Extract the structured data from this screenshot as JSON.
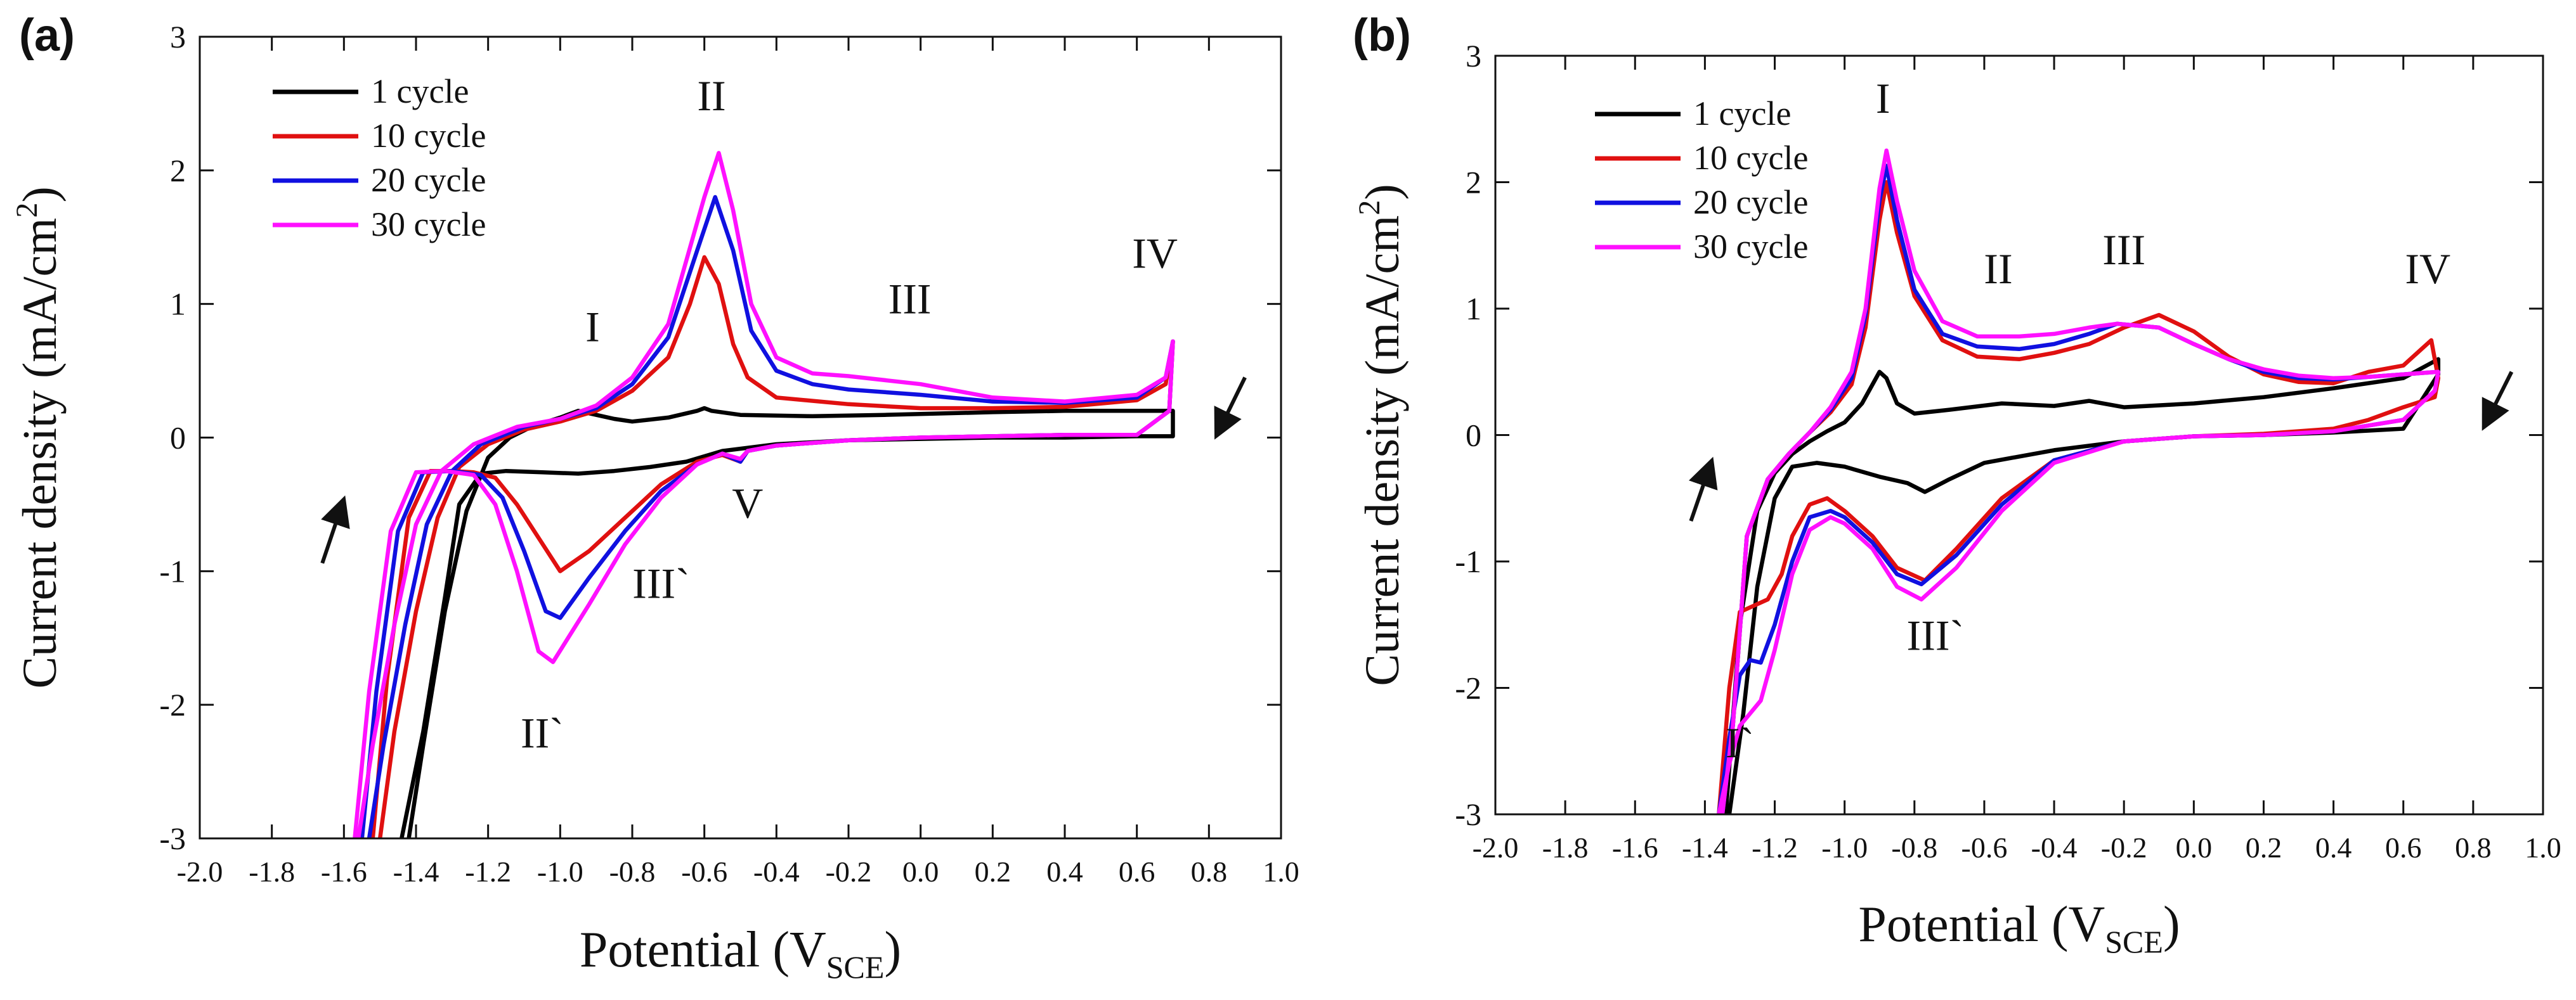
{
  "chart_data": [
    {
      "type": "line",
      "panel_label": "(a)",
      "xlabel": "Potential (V",
      "xlabel_sub": "SCE",
      "xlabel_close": ")",
      "ylabel": "Current density (mA/cm",
      "ylabel_sup": "2",
      "ylabel_close": ")",
      "xlim": [
        -2.0,
        1.0
      ],
      "ylim": [
        -3,
        3
      ],
      "xticks": [
        -2.0,
        -1.8,
        -1.6,
        -1.4,
        -1.2,
        -1.0,
        -0.8,
        -0.6,
        -0.4,
        -0.2,
        0.0,
        0.2,
        0.4,
        0.6,
        0.8,
        1.0
      ],
      "xtick_labels": [
        "-2.0",
        "-1.8",
        "-1.6",
        "-1.4",
        "-1.2",
        "-1.0",
        "-0.8",
        "-0.6",
        "-0.4",
        "-0.2",
        "0.0",
        "0.2",
        "0.4",
        "0.6",
        "0.8",
        "1.0"
      ],
      "yticks": [
        -3,
        -2,
        -1,
        0,
        1,
        2,
        3
      ],
      "ytick_labels": [
        "-3",
        "-2",
        "-1",
        "0",
        "1",
        "2",
        "3"
      ],
      "legend_position": "top-left",
      "series": [
        {
          "name": "1 cycle",
          "color": "#000000",
          "x": [
            -1.42,
            -1.38,
            -1.32,
            -1.26,
            -1.2,
            -1.14,
            -1.08,
            -1.0,
            -0.95,
            -0.9,
            -0.85,
            -0.8,
            -0.7,
            -0.62,
            -0.6,
            -0.58,
            -0.5,
            -0.3,
            -0.1,
            0.2,
            0.4,
            0.6,
            0.7,
            0.7,
            0.6,
            0.4,
            0.2,
            0.0,
            -0.2,
            -0.4,
            -0.55,
            -0.65,
            -0.75,
            -0.85,
            -0.95,
            -1.05,
            -1.15,
            -1.22,
            -1.28,
            -1.32,
            -1.38,
            -1.44
          ],
          "y": [
            -3.0,
            -2.3,
            -1.3,
            -0.55,
            -0.15,
            0.0,
            0.08,
            0.15,
            0.2,
            0.17,
            0.14,
            0.12,
            0.15,
            0.2,
            0.22,
            0.2,
            0.17,
            0.16,
            0.17,
            0.19,
            0.2,
            0.2,
            0.2,
            0.01,
            0.01,
            0.0,
            0.0,
            -0.01,
            -0.02,
            -0.05,
            -0.1,
            -0.18,
            -0.22,
            -0.25,
            -0.27,
            -0.26,
            -0.25,
            -0.27,
            -0.5,
            -1.2,
            -2.2,
            -3.0
          ]
        },
        {
          "name": "10 cycle",
          "color": "#e01010",
          "x": [
            -1.5,
            -1.46,
            -1.4,
            -1.34,
            -1.28,
            -1.2,
            -1.1,
            -1.0,
            -0.9,
            -0.8,
            -0.7,
            -0.64,
            -0.6,
            -0.56,
            -0.52,
            -0.48,
            -0.4,
            -0.2,
            0.0,
            0.2,
            0.4,
            0.6,
            0.68,
            0.7,
            0.69,
            0.6,
            0.4,
            0.2,
            0.0,
            -0.2,
            -0.4,
            -0.48,
            -0.5,
            -0.55,
            -0.62,
            -0.72,
            -0.82,
            -0.92,
            -1.0,
            -1.06,
            -1.12,
            -1.18,
            -1.24,
            -1.3,
            -1.36,
            -1.42,
            -1.48,
            -1.52
          ],
          "y": [
            -3.0,
            -2.2,
            -1.3,
            -0.6,
            -0.22,
            -0.05,
            0.06,
            0.12,
            0.2,
            0.35,
            0.6,
            1.0,
            1.35,
            1.15,
            0.7,
            0.45,
            0.3,
            0.25,
            0.22,
            0.22,
            0.23,
            0.28,
            0.4,
            0.72,
            0.2,
            0.02,
            0.02,
            0.01,
            0.0,
            -0.02,
            -0.06,
            -0.1,
            -0.18,
            -0.13,
            -0.18,
            -0.35,
            -0.6,
            -0.85,
            -1.0,
            -0.75,
            -0.5,
            -0.3,
            -0.26,
            -0.25,
            -0.25,
            -0.6,
            -1.8,
            -3.0
          ]
        },
        {
          "name": "20 cycle",
          "color": "#1010e0",
          "x": [
            -1.53,
            -1.49,
            -1.43,
            -1.37,
            -1.3,
            -1.22,
            -1.1,
            -1.0,
            -0.9,
            -0.8,
            -0.7,
            -0.62,
            -0.57,
            -0.52,
            -0.47,
            -0.4,
            -0.3,
            -0.2,
            0.0,
            0.2,
            0.4,
            0.6,
            0.68,
            0.7,
            0.69,
            0.6,
            0.4,
            0.2,
            0.0,
            -0.2,
            -0.4,
            -0.48,
            -0.5,
            -0.55,
            -0.62,
            -0.72,
            -0.82,
            -0.92,
            -1.0,
            -1.04,
            -1.1,
            -1.16,
            -1.22,
            -1.3,
            -1.38,
            -1.45,
            -1.51,
            -1.55
          ],
          "y": [
            -3.0,
            -2.3,
            -1.4,
            -0.65,
            -0.25,
            -0.05,
            0.08,
            0.14,
            0.22,
            0.4,
            0.75,
            1.4,
            1.8,
            1.4,
            0.8,
            0.5,
            0.4,
            0.36,
            0.32,
            0.27,
            0.26,
            0.3,
            0.45,
            0.72,
            0.2,
            0.02,
            0.02,
            0.01,
            0.0,
            -0.02,
            -0.06,
            -0.1,
            -0.18,
            -0.12,
            -0.2,
            -0.4,
            -0.7,
            -1.05,
            -1.35,
            -1.3,
            -0.85,
            -0.45,
            -0.28,
            -0.25,
            -0.26,
            -0.7,
            -1.9,
            -3.0
          ]
        },
        {
          "name": "30 cycle",
          "color": "#ff10ff",
          "x": [
            -1.56,
            -1.52,
            -1.46,
            -1.4,
            -1.33,
            -1.24,
            -1.12,
            -1.0,
            -0.9,
            -0.8,
            -0.7,
            -0.6,
            -0.56,
            -0.52,
            -0.47,
            -0.4,
            -0.3,
            -0.2,
            0.0,
            0.2,
            0.4,
            0.6,
            0.68,
            0.7,
            0.69,
            0.6,
            0.4,
            0.2,
            0.0,
            -0.2,
            -0.4,
            -0.48,
            -0.5,
            -0.55,
            -0.62,
            -0.72,
            -0.82,
            -0.92,
            -1.02,
            -1.06,
            -1.12,
            -1.18,
            -1.24,
            -1.32,
            -1.4,
            -1.47,
            -1.53,
            -1.57
          ],
          "y": [
            -3.0,
            -2.3,
            -1.4,
            -0.65,
            -0.25,
            -0.05,
            0.08,
            0.14,
            0.24,
            0.45,
            0.85,
            1.8,
            2.13,
            1.7,
            1.0,
            0.6,
            0.48,
            0.46,
            0.4,
            0.3,
            0.27,
            0.32,
            0.45,
            0.72,
            0.2,
            0.02,
            0.02,
            0.01,
            0.0,
            -0.02,
            -0.06,
            -0.1,
            -0.16,
            -0.12,
            -0.2,
            -0.45,
            -0.8,
            -1.25,
            -1.68,
            -1.6,
            -1.0,
            -0.5,
            -0.28,
            -0.25,
            -0.26,
            -0.7,
            -1.9,
            -3.0
          ]
        }
      ],
      "annotations": [
        {
          "text": "I",
          "x": -0.91,
          "y": 0.72
        },
        {
          "text": "II",
          "x": -0.58,
          "y": 2.45
        },
        {
          "text": "III",
          "x": -0.03,
          "y": 0.93
        },
        {
          "text": "IV",
          "x": 0.65,
          "y": 1.27
        },
        {
          "text": "V",
          "x": -0.48,
          "y": -0.6
        },
        {
          "text": "III`",
          "x": -0.72,
          "y": -1.2
        },
        {
          "text": "II`",
          "x": -1.05,
          "y": -2.32
        }
      ],
      "arrows": [
        {
          "x": -1.66,
          "y": -0.94,
          "dx": 0.06,
          "dy": 0.48
        },
        {
          "x": 0.9,
          "y": 0.45,
          "dx": -0.08,
          "dy": -0.44
        }
      ]
    },
    {
      "type": "line",
      "panel_label": "(b)",
      "xlabel": "Potential (V",
      "xlabel_sub": "SCE",
      "xlabel_close": ")",
      "ylabel": "Current density (mA/cm",
      "ylabel_sup": "2",
      "ylabel_close": ")",
      "xlim": [
        -2.0,
        1.0
      ],
      "ylim": [
        -3,
        3
      ],
      "xticks": [
        -2.0,
        -1.8,
        -1.6,
        -1.4,
        -1.2,
        -1.0,
        -0.8,
        -0.6,
        -0.4,
        -0.2,
        0.0,
        0.2,
        0.4,
        0.6,
        0.8,
        1.0
      ],
      "xtick_labels": [
        "-2.0",
        "-1.8",
        "-1.6",
        "-1.4",
        "-1.2",
        "-1.0",
        "-0.8",
        "-0.6",
        "-0.4",
        "-0.2",
        "0.0",
        "0.2",
        "0.4",
        "0.6",
        "0.8",
        "1.0"
      ],
      "yticks": [
        -3,
        -2,
        -1,
        0,
        1,
        2,
        3
      ],
      "ytick_labels": [
        "-3",
        "-2",
        "-1",
        "0",
        "1",
        "2",
        "3"
      ],
      "legend_position": "top-left",
      "series": [
        {
          "name": "1 cycle",
          "color": "#000000",
          "x": [
            -1.34,
            -1.3,
            -1.25,
            -1.2,
            -1.15,
            -1.1,
            -1.05,
            -1.0,
            -0.95,
            -0.9,
            -0.88,
            -0.85,
            -0.8,
            -0.7,
            -0.55,
            -0.4,
            -0.3,
            -0.2,
            0.0,
            0.2,
            0.4,
            0.6,
            0.7,
            0.7,
            0.6,
            0.4,
            0.2,
            0.0,
            -0.2,
            -0.4,
            -0.6,
            -0.7,
            -0.77,
            -0.82,
            -0.9,
            -1.0,
            -1.08,
            -1.15,
            -1.2,
            -1.25,
            -1.29,
            -1.33
          ],
          "y": [
            -3.0,
            -1.5,
            -0.6,
            -0.3,
            -0.15,
            -0.05,
            0.03,
            0.1,
            0.25,
            0.5,
            0.45,
            0.25,
            0.17,
            0.2,
            0.25,
            0.23,
            0.27,
            0.22,
            0.25,
            0.3,
            0.37,
            0.45,
            0.6,
            0.48,
            0.05,
            0.02,
            0.0,
            -0.01,
            -0.05,
            -0.12,
            -0.22,
            -0.35,
            -0.45,
            -0.38,
            -0.33,
            -0.25,
            -0.22,
            -0.25,
            -0.5,
            -1.2,
            -2.2,
            -3.0
          ]
        },
        {
          "name": "10 cycle",
          "color": "#e01010",
          "x": [
            -1.35,
            -1.32,
            -1.28,
            -1.22,
            -1.16,
            -1.1,
            -1.04,
            -0.98,
            -0.94,
            -0.9,
            -0.88,
            -0.85,
            -0.8,
            -0.72,
            -0.62,
            -0.5,
            -0.4,
            -0.3,
            -0.2,
            -0.1,
            0.0,
            0.1,
            0.2,
            0.3,
            0.4,
            0.5,
            0.6,
            0.68,
            0.7,
            0.69,
            0.6,
            0.5,
            0.4,
            0.2,
            0.0,
            -0.2,
            -0.4,
            -0.55,
            -0.68,
            -0.77,
            -0.85,
            -0.92,
            -1.0,
            -1.05,
            -1.1,
            -1.15,
            -1.18,
            -1.22,
            -1.26,
            -1.3,
            -1.33,
            -1.36
          ],
          "y": [
            -3.0,
            -2.3,
            -0.8,
            -0.35,
            -0.15,
            0.02,
            0.18,
            0.4,
            0.85,
            1.7,
            2.0,
            1.6,
            1.1,
            0.75,
            0.62,
            0.6,
            0.65,
            0.72,
            0.85,
            0.95,
            0.82,
            0.62,
            0.48,
            0.42,
            0.41,
            0.5,
            0.55,
            0.75,
            0.45,
            0.3,
            0.22,
            0.12,
            0.05,
            0.01,
            -0.01,
            -0.05,
            -0.2,
            -0.5,
            -0.9,
            -1.15,
            -1.05,
            -0.8,
            -0.6,
            -0.5,
            -0.55,
            -0.8,
            -1.1,
            -1.3,
            -1.35,
            -1.4,
            -2.0,
            -3.0
          ]
        },
        {
          "name": "20 cycle",
          "color": "#1010e0",
          "x": [
            -1.35,
            -1.32,
            -1.28,
            -1.22,
            -1.16,
            -1.1,
            -1.04,
            -0.98,
            -0.94,
            -0.9,
            -0.88,
            -0.85,
            -0.8,
            -0.72,
            -0.62,
            -0.5,
            -0.4,
            -0.3,
            -0.22,
            -0.1,
            0.0,
            0.1,
            0.2,
            0.3,
            0.4,
            0.5,
            0.6,
            0.7,
            0.69,
            0.6,
            0.4,
            0.2,
            0.0,
            -0.2,
            -0.4,
            -0.55,
            -0.68,
            -0.78,
            -0.85,
            -0.92,
            -1.0,
            -1.04,
            -1.1,
            -1.15,
            -1.2,
            -1.24,
            -1.27,
            -1.3,
            -1.33,
            -1.36
          ],
          "y": [
            -3.0,
            -2.3,
            -0.8,
            -0.35,
            -0.15,
            0.02,
            0.2,
            0.45,
            0.95,
            1.85,
            2.13,
            1.7,
            1.15,
            0.8,
            0.7,
            0.68,
            0.72,
            0.8,
            0.88,
            0.85,
            0.72,
            0.6,
            0.5,
            0.45,
            0.44,
            0.46,
            0.48,
            0.5,
            0.35,
            0.12,
            0.03,
            0.0,
            -0.01,
            -0.05,
            -0.2,
            -0.55,
            -0.95,
            -1.18,
            -1.1,
            -0.85,
            -0.65,
            -0.6,
            -0.65,
            -1.0,
            -1.5,
            -1.8,
            -1.78,
            -1.9,
            -2.4,
            -3.0
          ]
        },
        {
          "name": "30 cycle",
          "color": "#ff10ff",
          "x": [
            -1.35,
            -1.32,
            -1.28,
            -1.22,
            -1.16,
            -1.1,
            -1.04,
            -0.98,
            -0.94,
            -0.9,
            -0.88,
            -0.85,
            -0.8,
            -0.72,
            -0.62,
            -0.5,
            -0.4,
            -0.3,
            -0.22,
            -0.1,
            0.0,
            0.1,
            0.2,
            0.3,
            0.4,
            0.5,
            0.6,
            0.7,
            0.69,
            0.6,
            0.4,
            0.2,
            0.0,
            -0.2,
            -0.4,
            -0.55,
            -0.68,
            -0.78,
            -0.85,
            -0.92,
            -1.0,
            -1.04,
            -1.1,
            -1.15,
            -1.2,
            -1.24,
            -1.27,
            -1.3,
            -1.33,
            -1.36
          ],
          "y": [
            -3.0,
            -2.3,
            -0.8,
            -0.35,
            -0.15,
            0.02,
            0.22,
            0.5,
            1.0,
            1.95,
            2.25,
            1.85,
            1.3,
            0.9,
            0.78,
            0.78,
            0.8,
            0.85,
            0.88,
            0.85,
            0.72,
            0.6,
            0.52,
            0.47,
            0.45,
            0.46,
            0.48,
            0.5,
            0.35,
            0.12,
            0.03,
            0.0,
            -0.01,
            -0.05,
            -0.22,
            -0.6,
            -1.05,
            -1.3,
            -1.2,
            -0.9,
            -0.7,
            -0.65,
            -0.75,
            -1.1,
            -1.7,
            -2.1,
            -2.2,
            -2.3,
            -2.6,
            -3.0
          ]
        }
      ],
      "annotations": [
        {
          "text": "I",
          "x": -0.89,
          "y": 2.55
        },
        {
          "text": "II",
          "x": -0.56,
          "y": 1.2
        },
        {
          "text": "III",
          "x": -0.2,
          "y": 1.35
        },
        {
          "text": "IV",
          "x": 0.67,
          "y": 1.2
        },
        {
          "text": "III`",
          "x": -0.74,
          "y": -1.7
        },
        {
          "text": "I`",
          "x": -1.3,
          "y": -2.55
        }
      ],
      "arrows": [
        {
          "x": -1.44,
          "y": -0.68,
          "dx": 0.06,
          "dy": 0.48
        },
        {
          "x": 0.91,
          "y": 0.5,
          "dx": -0.08,
          "dy": -0.44
        }
      ]
    }
  ]
}
